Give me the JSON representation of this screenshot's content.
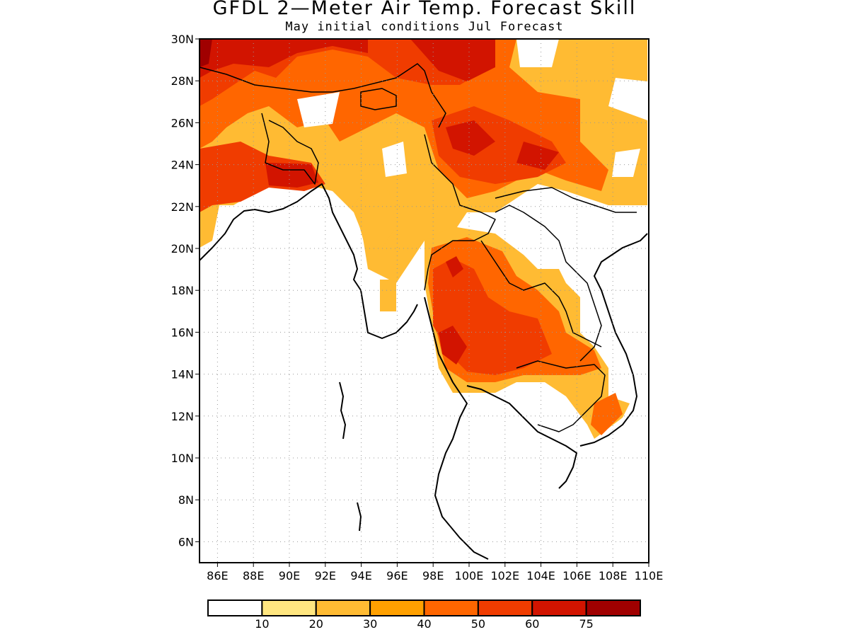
{
  "title": "GFDL 2—Meter Air Temp. Forecast Skill",
  "subtitle": "May initial conditions  Jul Forecast",
  "map": {
    "lon_range": [
      85,
      110
    ],
    "lat_range": [
      5,
      30
    ],
    "lat_labels": [
      "30N",
      "28N",
      "26N",
      "24N",
      "22N",
      "20N",
      "18N",
      "16N",
      "14N",
      "12N",
      "10N",
      "8N",
      "6N"
    ],
    "lon_labels": [
      "86E",
      "88E",
      "90E",
      "92E",
      "94E",
      "96E",
      "98E",
      "100E",
      "102E",
      "104E",
      "106E",
      "108E",
      "110E"
    ],
    "grid": true
  },
  "colorbar": {
    "labels": [
      "10",
      "20",
      "30",
      "40",
      "50",
      "60",
      "75"
    ],
    "colors": [
      "#ffffff",
      "#ffe680",
      "#ffbb33",
      "#ffa000",
      "#ff6600",
      "#f03c00",
      "#d21400",
      "#a00000"
    ]
  }
}
